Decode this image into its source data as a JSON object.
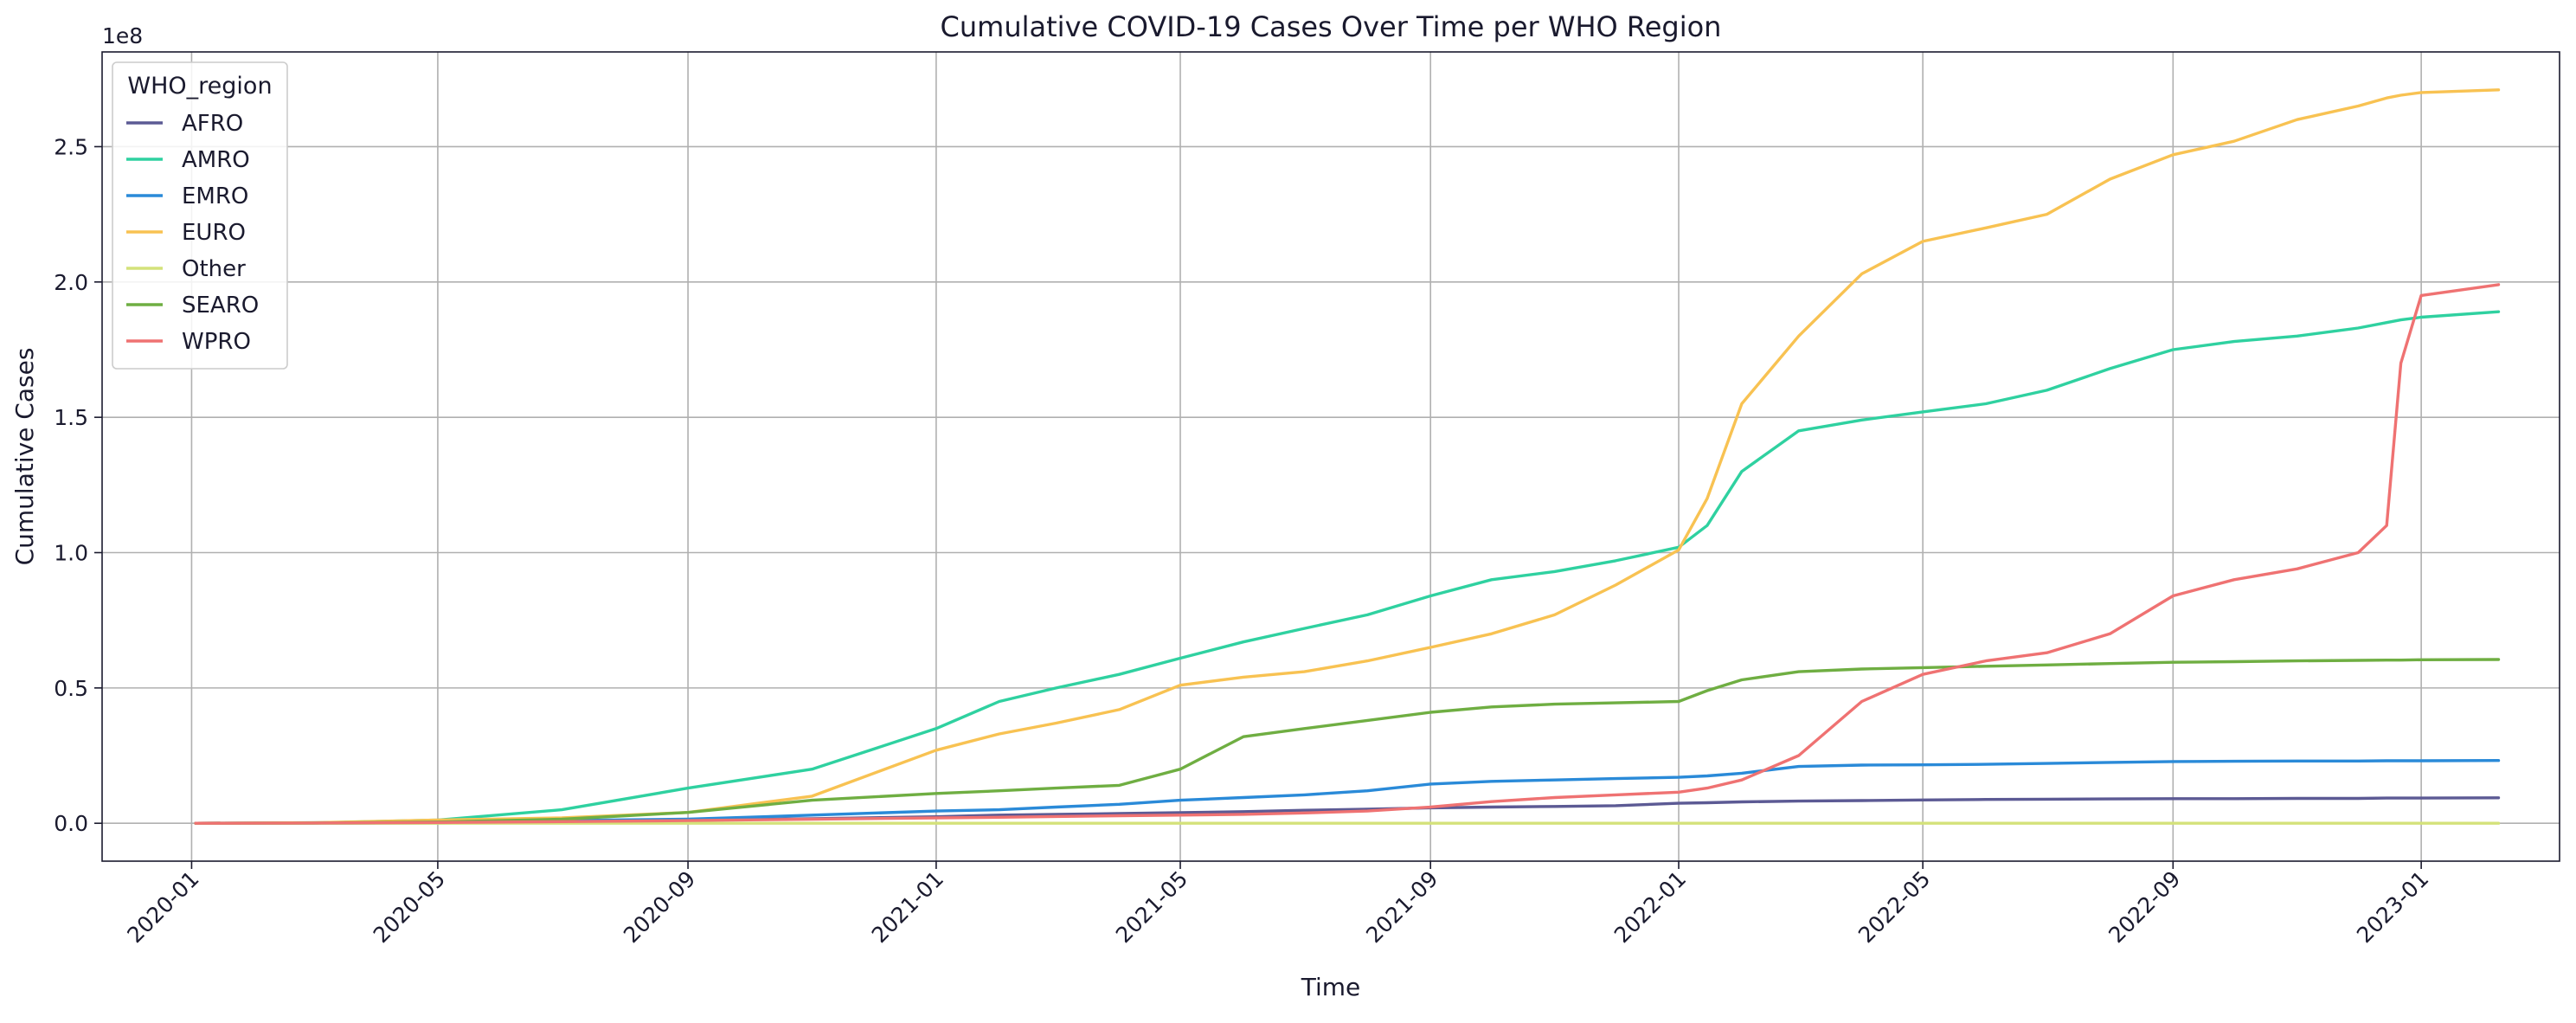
{
  "chart_data": {
    "type": "line",
    "title": "Cumulative COVID-19 Cases Over Time per WHO Region",
    "xlabel": "Time",
    "ylabel": "Cumulative Cases",
    "y_offset_label": "1e8",
    "ylim": [
      -0.14,
      2.85
    ],
    "xlim": [
      "2019-11-18",
      "2023-03-10"
    ],
    "grid": true,
    "legend": {
      "title": "WHO_region",
      "placement": "top-left"
    },
    "x_ticks": [
      "2020-01",
      "2020-05",
      "2020-09",
      "2021-01",
      "2021-05",
      "2021-09",
      "2022-01",
      "2022-05",
      "2022-09",
      "2023-01"
    ],
    "y_ticks": [
      "0.0",
      "0.5",
      "1.0",
      "1.5",
      "2.0",
      "2.5"
    ],
    "x": [
      "2020-01-03",
      "2020-03-01",
      "2020-05-01",
      "2020-07-01",
      "2020-09-01",
      "2020-11-01",
      "2021-01-01",
      "2021-02-01",
      "2021-03-01",
      "2021-04-01",
      "2021-05-01",
      "2021-06-01",
      "2021-07-01",
      "2021-08-01",
      "2021-09-01",
      "2021-10-01",
      "2021-11-01",
      "2021-12-01",
      "2022-01-01",
      "2022-01-15",
      "2022-02-01",
      "2022-03-01",
      "2022-04-01",
      "2022-05-01",
      "2022-06-01",
      "2022-07-01",
      "2022-08-01",
      "2022-09-01",
      "2022-10-01",
      "2022-11-01",
      "2022-12-01",
      "2022-12-15",
      "2022-12-22",
      "2023-01-01",
      "2023-02-08"
    ],
    "series": [
      {
        "name": "AFRO",
        "color": "#5c5a94",
        "values": [
          0,
          0,
          0.001,
          0.005,
          0.012,
          0.017,
          0.024,
          0.03,
          0.033,
          0.036,
          0.039,
          0.043,
          0.048,
          0.052,
          0.057,
          0.06,
          0.062,
          0.065,
          0.074,
          0.076,
          0.079,
          0.082,
          0.084,
          0.086,
          0.088,
          0.089,
          0.09,
          0.091,
          0.091,
          0.092,
          0.092,
          0.093,
          0.093,
          0.093,
          0.094
        ]
      },
      {
        "name": "AMRO",
        "color": "#2fd1a0",
        "values": [
          0,
          0.001,
          0.012,
          0.05,
          0.13,
          0.2,
          0.35,
          0.45,
          0.5,
          0.55,
          0.61,
          0.67,
          0.72,
          0.77,
          0.84,
          0.9,
          0.93,
          0.97,
          1.02,
          1.1,
          1.3,
          1.45,
          1.49,
          1.52,
          1.55,
          1.6,
          1.68,
          1.75,
          1.78,
          1.8,
          1.83,
          1.85,
          1.86,
          1.87,
          1.89
        ]
      },
      {
        "name": "EMRO",
        "color": "#2a8ad8",
        "values": [
          0,
          0.002,
          0.006,
          0.01,
          0.015,
          0.03,
          0.045,
          0.05,
          0.06,
          0.07,
          0.085,
          0.095,
          0.105,
          0.12,
          0.145,
          0.155,
          0.16,
          0.165,
          0.17,
          0.175,
          0.185,
          0.21,
          0.215,
          0.216,
          0.218,
          0.221,
          0.225,
          0.228,
          0.229,
          0.23,
          0.23,
          0.231,
          0.231,
          0.231,
          0.232
        ]
      },
      {
        "name": "EURO",
        "color": "#f8c252",
        "values": [
          0,
          0.002,
          0.012,
          0.02,
          0.04,
          0.1,
          0.27,
          0.33,
          0.37,
          0.42,
          0.51,
          0.54,
          0.56,
          0.6,
          0.65,
          0.7,
          0.77,
          0.88,
          1.01,
          1.2,
          1.55,
          1.8,
          2.03,
          2.15,
          2.2,
          2.25,
          2.38,
          2.47,
          2.52,
          2.6,
          2.65,
          2.68,
          2.69,
          2.7,
          2.71
        ]
      },
      {
        "name": "Other",
        "color": "#d4e27a",
        "values": [
          0,
          0,
          0,
          0,
          0,
          0,
          0,
          0,
          0,
          0,
          0,
          0,
          0,
          0,
          0,
          0,
          0,
          0,
          0,
          0,
          0,
          0,
          0,
          0,
          0,
          0,
          0,
          0,
          0,
          0,
          0,
          0,
          0,
          0,
          0
        ]
      },
      {
        "name": "SEARO",
        "color": "#6fae42",
        "values": [
          0,
          0.001,
          0.005,
          0.015,
          0.04,
          0.085,
          0.11,
          0.12,
          0.13,
          0.14,
          0.2,
          0.32,
          0.35,
          0.38,
          0.41,
          0.43,
          0.44,
          0.445,
          0.45,
          0.49,
          0.53,
          0.56,
          0.57,
          0.575,
          0.58,
          0.585,
          0.59,
          0.595,
          0.597,
          0.6,
          0.602,
          0.603,
          0.603,
          0.604,
          0.605
        ]
      },
      {
        "name": "WPRO",
        "color": "#ef7272",
        "values": [
          0,
          0.001,
          0.003,
          0.006,
          0.01,
          0.015,
          0.02,
          0.022,
          0.025,
          0.028,
          0.03,
          0.033,
          0.038,
          0.045,
          0.06,
          0.08,
          0.095,
          0.105,
          0.115,
          0.13,
          0.16,
          0.25,
          0.45,
          0.55,
          0.6,
          0.63,
          0.7,
          0.84,
          0.9,
          0.94,
          1.0,
          1.1,
          1.7,
          1.95,
          1.99
        ]
      }
    ]
  }
}
